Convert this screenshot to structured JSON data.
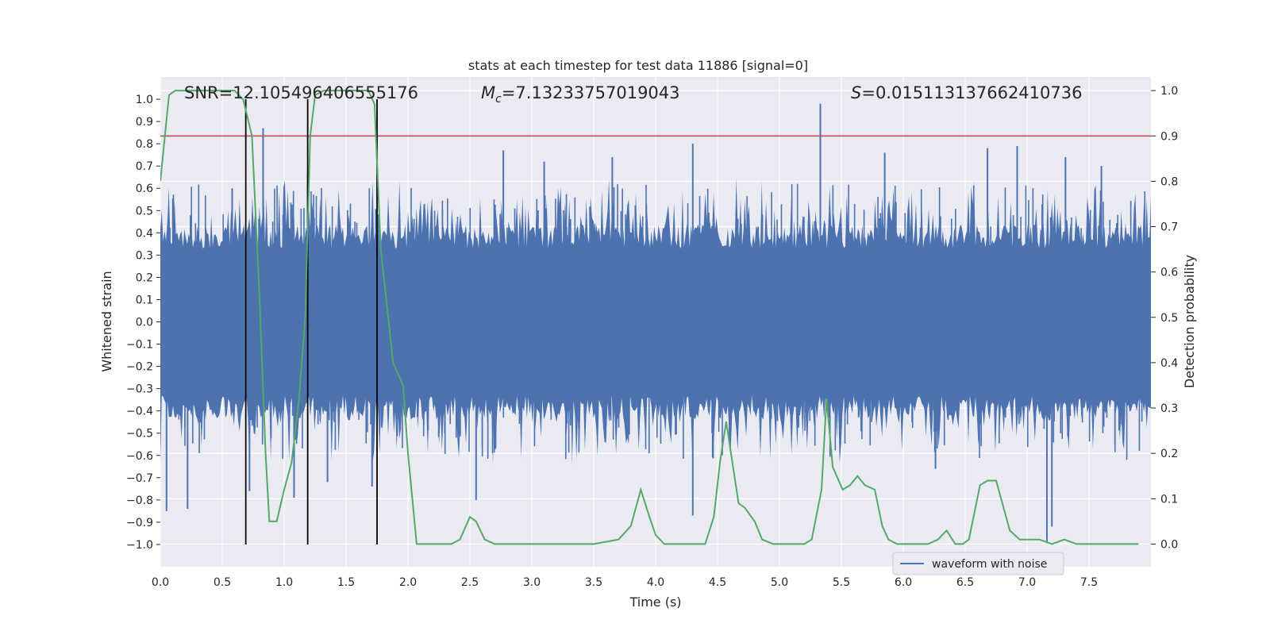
{
  "chart_data": {
    "type": "line",
    "title": "stats at each timestep for test data 11886 [signal=0]",
    "xlabel": "Time (s)",
    "ylabel_left": "Whitened strain",
    "ylabel_right": "Detection probability",
    "xlim": [
      0.0,
      8.0
    ],
    "ylim_left": [
      -1.1,
      1.1
    ],
    "ylim_right": [
      -0.05,
      1.03
    ],
    "x_ticks": [
      "0.0",
      "0.5",
      "1.0",
      "1.5",
      "2.0",
      "2.5",
      "3.0",
      "3.5",
      "4.0",
      "4.5",
      "5.0",
      "5.5",
      "6.0",
      "6.5",
      "7.0",
      "7.5"
    ],
    "y_left_ticks": [
      "1.0",
      "0.9",
      "0.8",
      "0.7",
      "0.6",
      "0.5",
      "0.4",
      "0.3",
      "0.2",
      "0.1",
      "0.0",
      "-0.1",
      "-0.2",
      "-0.3",
      "-0.4",
      "-0.5",
      "-0.6",
      "-0.7",
      "-0.8",
      "-0.9",
      "-1.0"
    ],
    "y_right_ticks": [
      "1.0",
      "0.9",
      "0.8",
      "0.7",
      "0.6",
      "0.5",
      "0.4",
      "0.3",
      "0.2",
      "0.1",
      "0.0"
    ],
    "annotations": {
      "snr": "SNR=12.105496406555176",
      "mc_symbol": "M",
      "mc_sub": "c",
      "mc_value": "=7.13233757019043",
      "s_symbol": "S",
      "s_value": "=0.015113137662410736"
    },
    "threshold": {
      "value": 0.9,
      "axis": "right",
      "color": "#c44e52"
    },
    "vertical_markers": {
      "x": [
        0.69,
        1.19,
        1.75
      ],
      "y_range": [
        -1.0,
        1.0
      ],
      "color": "#000000"
    },
    "waveform": {
      "name": "waveform with noise",
      "color": "#4c72b0",
      "summary": "dense noise band roughly -0.4 to 0.4 with spikes up to about +/-0.9",
      "spikes": [
        [
          0.05,
          -0.85
        ],
        [
          0.22,
          -0.84
        ],
        [
          0.58,
          0.6
        ],
        [
          0.72,
          -0.76
        ],
        [
          0.83,
          0.87
        ],
        [
          1.08,
          -0.79
        ],
        [
          1.19,
          0.66
        ],
        [
          1.35,
          -0.72
        ],
        [
          1.71,
          -0.74
        ],
        [
          2.55,
          -0.8
        ],
        [
          2.77,
          0.77
        ],
        [
          3.1,
          0.72
        ],
        [
          3.65,
          0.74
        ],
        [
          4.3,
          0.8
        ],
        [
          4.3,
          -0.87
        ],
        [
          5.33,
          0.98
        ],
        [
          5.85,
          0.76
        ],
        [
          6.26,
          -0.66
        ],
        [
          6.68,
          0.78
        ],
        [
          6.92,
          0.79
        ],
        [
          7.16,
          -0.99
        ],
        [
          7.2,
          -0.92
        ],
        [
          7.31,
          0.74
        ],
        [
          7.6,
          0.7
        ]
      ]
    },
    "probability": {
      "color": "#55a868",
      "x": [
        0.0,
        0.07,
        0.12,
        0.3,
        0.5,
        0.6,
        0.67,
        0.74,
        0.8,
        0.85,
        0.88,
        0.94,
        1.0,
        1.06,
        1.12,
        1.17,
        1.21,
        1.25,
        1.32,
        1.5,
        1.68,
        1.73,
        1.78,
        1.88,
        1.96,
        2.0,
        2.07,
        2.15,
        2.25,
        2.35,
        2.42,
        2.5,
        2.55,
        2.62,
        2.7,
        2.85,
        3.0,
        3.5,
        3.7,
        3.8,
        3.88,
        3.95,
        4.0,
        4.07,
        4.2,
        4.4,
        4.47,
        4.52,
        4.57,
        4.67,
        4.72,
        4.8,
        4.86,
        4.95,
        5.05,
        5.2,
        5.26,
        5.34,
        5.38,
        5.43,
        5.51,
        5.57,
        5.63,
        5.69,
        5.77,
        5.83,
        5.88,
        5.95,
        6.05,
        6.15,
        6.2,
        6.28,
        6.35,
        6.42,
        6.48,
        6.53,
        6.62,
        6.68,
        6.75,
        6.86,
        6.94,
        7.0,
        7.1,
        7.2,
        7.3,
        7.4,
        7.55,
        7.7,
        7.9
      ],
      "y": [
        0.8,
        0.99,
        1.0,
        1.0,
        1.0,
        1.0,
        0.98,
        0.9,
        0.55,
        0.2,
        0.05,
        0.05,
        0.12,
        0.18,
        0.32,
        0.5,
        0.9,
        0.99,
        1.0,
        1.0,
        1.0,
        0.97,
        0.65,
        0.4,
        0.35,
        0.2,
        0.0,
        0.0,
        0.0,
        0.0,
        0.01,
        0.06,
        0.05,
        0.01,
        0.0,
        0.0,
        0.0,
        0.0,
        0.01,
        0.04,
        0.12,
        0.06,
        0.02,
        0.0,
        0.0,
        0.0,
        0.06,
        0.18,
        0.27,
        0.09,
        0.08,
        0.05,
        0.01,
        0.0,
        0.0,
        0.0,
        0.01,
        0.12,
        0.32,
        0.17,
        0.12,
        0.13,
        0.15,
        0.13,
        0.12,
        0.04,
        0.01,
        0.0,
        0.0,
        0.0,
        0.0,
        0.01,
        0.03,
        0.0,
        0.0,
        0.01,
        0.13,
        0.14,
        0.14,
        0.03,
        0.01,
        0.01,
        0.01,
        0.0,
        0.01,
        0.0,
        0.0,
        0.0,
        0.0
      ]
    },
    "legend": {
      "entries": [
        "waveform with noise"
      ],
      "location": "lower-right"
    }
  }
}
